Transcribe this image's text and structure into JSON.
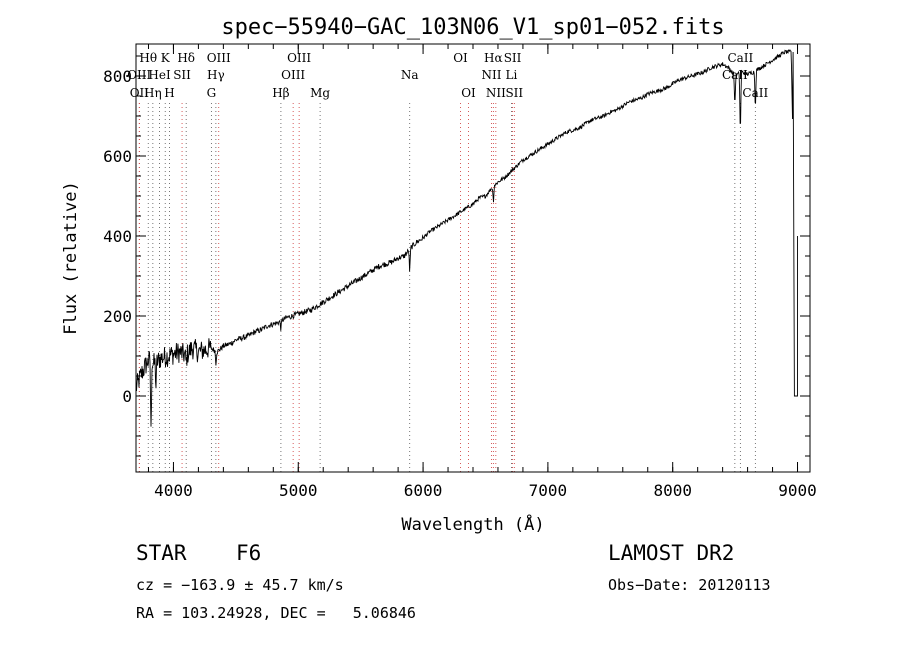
{
  "chart_data": {
    "type": "line",
    "title": "spec−55940−GAC_103N06_V1_sp01−052.fits",
    "xlabel": "Wavelength (Å)",
    "ylabel": "Flux (relative)",
    "xlim": [
      3700,
      9100
    ],
    "ylim": [
      -190,
      880
    ],
    "xticks": [
      4000,
      5000,
      6000,
      7000,
      8000,
      9000
    ],
    "yticks": [
      0,
      200,
      400,
      600,
      800
    ],
    "grid": false,
    "series": [
      {
        "x": [
          3700,
          3750,
          3800,
          3850,
          3900,
          3950,
          4000,
          4050,
          4100,
          4150,
          4200,
          4250,
          4300,
          4350,
          4400,
          4450,
          4500,
          4550,
          4600,
          4650,
          4700,
          4750,
          4800,
          4850,
          4900,
          4950,
          5000,
          5050,
          5100,
          5150,
          5200,
          5250,
          5300,
          5350,
          5400,
          5450,
          5500,
          5550,
          5600,
          5650,
          5700,
          5750,
          5800,
          5850,
          5900,
          5950,
          6000,
          6050,
          6100,
          6150,
          6200,
          6250,
          6300,
          6350,
          6400,
          6450,
          6500,
          6550,
          6600,
          6650,
          6700,
          6750,
          6800,
          6850,
          6900,
          6950,
          7000,
          7050,
          7100,
          7150,
          7200,
          7250,
          7300,
          7350,
          7400,
          7450,
          7500,
          7550,
          7600,
          7650,
          7700,
          7750,
          7800,
          7850,
          7900,
          7950,
          8000,
          8050,
          8100,
          8150,
          8200,
          8250,
          8300,
          8350,
          8400,
          8450,
          8500,
          8550,
          8600,
          8650,
          8700,
          8750,
          8800,
          8850,
          8900,
          8950,
          9000
        ],
        "y": [
          20,
          60,
          90,
          80,
          95,
          100,
          105,
          110,
          100,
          120,
          110,
          115,
          120,
          110,
          125,
          130,
          140,
          145,
          150,
          160,
          165,
          175,
          180,
          185,
          195,
          200,
          205,
          210,
          215,
          225,
          235,
          245,
          255,
          265,
          275,
          285,
          295,
          305,
          315,
          325,
          330,
          335,
          345,
          350,
          370,
          385,
          395,
          410,
          420,
          430,
          440,
          450,
          460,
          470,
          480,
          495,
          500,
          520,
          535,
          545,
          560,
          575,
          590,
          600,
          610,
          620,
          630,
          640,
          650,
          660,
          665,
          670,
          680,
          690,
          695,
          700,
          710,
          715,
          725,
          735,
          740,
          745,
          755,
          760,
          765,
          770,
          780,
          790,
          795,
          800,
          805,
          810,
          820,
          825,
          830,
          820,
          800,
          810,
          805,
          810,
          820,
          830,
          840,
          850,
          860,
          860,
          0
        ]
      }
    ],
    "line_markers": [
      {
        "label": "Hθ",
        "x": 3798,
        "row": 1
      },
      {
        "label": "K",
        "x": 3934,
        "row": 1
      },
      {
        "label": "Hδ",
        "x": 4102,
        "row": 1
      },
      {
        "label": "OIII",
        "x": 4363,
        "row": 1
      },
      {
        "label": "OIII",
        "x": 5007,
        "row": 1
      },
      {
        "label": "OI",
        "x": 6300,
        "row": 1
      },
      {
        "label": "Hα",
        "x": 6563,
        "row": 1
      },
      {
        "label": "SII",
        "x": 6717,
        "row": 1
      },
      {
        "label": "CaII",
        "x": 8542,
        "row": 1
      },
      {
        "label": "OIII",
        "x": 3726,
        "row": 2
      },
      {
        "label": "HeI",
        "x": 3889,
        "row": 2
      },
      {
        "label": "SII",
        "x": 4069,
        "row": 2
      },
      {
        "label": "Hγ",
        "x": 4340,
        "row": 2
      },
      {
        "label": "OIII",
        "x": 4959,
        "row": 2
      },
      {
        "label": "Na",
        "x": 5893,
        "row": 2
      },
      {
        "label": "NII",
        "x": 6548,
        "row": 2
      },
      {
        "label": "Li",
        "x": 6708,
        "row": 2
      },
      {
        "label": "CaII",
        "x": 8498,
        "row": 2
      },
      {
        "label": "OII",
        "x": 3727,
        "row": 3
      },
      {
        "label": "Hη",
        "x": 3835,
        "row": 3
      },
      {
        "label": "H",
        "x": 3968,
        "row": 3
      },
      {
        "label": "G",
        "x": 4304,
        "row": 3
      },
      {
        "label": "Hβ",
        "x": 4861,
        "row": 3
      },
      {
        "label": "Mg",
        "x": 5175,
        "row": 3
      },
      {
        "label": "OI",
        "x": 6364,
        "row": 3
      },
      {
        "label": "NII",
        "x": 6583,
        "row": 3
      },
      {
        "label": "SII",
        "x": 6731,
        "row": 3
      },
      {
        "label": "CaII",
        "x": 8662,
        "row": 3
      }
    ]
  },
  "info": {
    "object_class": "STAR",
    "subclass": "F6",
    "release": "LAMOST DR2",
    "redshift": "cz = −163.9 ± 45.7 km/s",
    "obs_date": "Obs−Date: 20120113",
    "coords": "RA = 103.24928, DEC =   5.06846"
  }
}
